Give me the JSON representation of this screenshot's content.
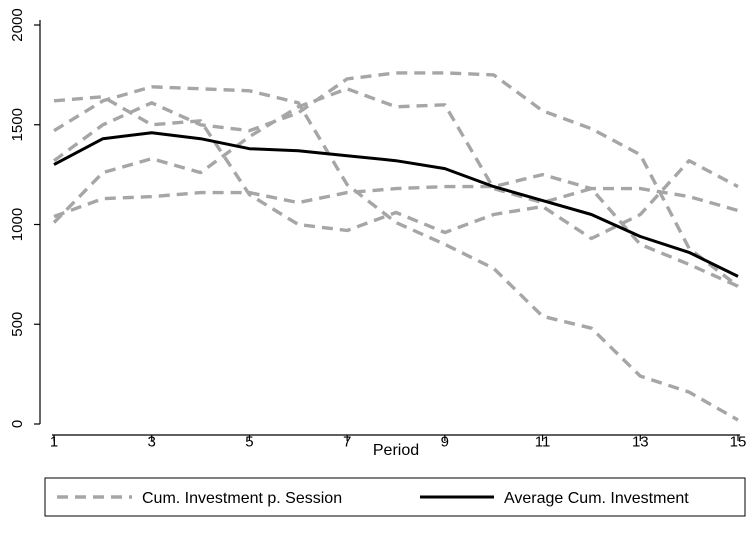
{
  "chart_data": {
    "type": "line",
    "xlabel": "Period",
    "ylabel": "",
    "xlim": [
      1,
      15
    ],
    "ylim": [
      0,
      2000
    ],
    "x_ticks": [
      1,
      3,
      5,
      7,
      9,
      11,
      13,
      15
    ],
    "y_ticks": [
      0,
      500,
      1000,
      1500,
      2000
    ],
    "grid": false,
    "legend_position": "bottom",
    "x": [
      1,
      2,
      3,
      4,
      5,
      6,
      7,
      8,
      9,
      10,
      11,
      12,
      13,
      14,
      15
    ],
    "series": [
      {
        "group": "session",
        "color": "#a6a6a6",
        "style": "dashed",
        "values": [
          1620,
          1640,
          1500,
          1520,
          1150,
          1000,
          970,
          1060,
          960,
          1050,
          1090,
          930,
          1050,
          1320,
          1190
        ]
      },
      {
        "group": "session",
        "color": "#a6a6a6",
        "style": "dashed",
        "values": [
          1470,
          1620,
          1690,
          1680,
          1670,
          1610,
          1200,
          1010,
          900,
          780,
          540,
          480,
          240,
          160,
          20
        ]
      },
      {
        "group": "session",
        "color": "#a6a6a6",
        "style": "dashed",
        "values": [
          1320,
          1500,
          1610,
          1500,
          1470,
          1560,
          1730,
          1760,
          1760,
          1750,
          1570,
          1480,
          1350,
          880,
          690
        ]
      },
      {
        "group": "session",
        "color": "#a6a6a6",
        "style": "dashed",
        "values": [
          1010,
          1260,
          1330,
          1260,
          1440,
          1590,
          1680,
          1590,
          1600,
          1180,
          1110,
          1180,
          900,
          800,
          690
        ]
      },
      {
        "group": "session",
        "color": "#a6a6a6",
        "style": "dashed",
        "values": [
          1040,
          1130,
          1140,
          1160,
          1160,
          1110,
          1160,
          1180,
          1190,
          1190,
          1250,
          1180,
          1180,
          1140,
          1070
        ]
      },
      {
        "group": "average",
        "color": "#000000",
        "style": "solid",
        "values": [
          1300,
          1430,
          1460,
          1430,
          1380,
          1370,
          1345,
          1320,
          1280,
          1190,
          1120,
          1050,
          940,
          860,
          740
        ]
      }
    ],
    "legend": [
      {
        "label": "Cum. Investment p. Session",
        "color": "#a6a6a6",
        "style": "dashed"
      },
      {
        "label": "Average Cum. Investment",
        "color": "#000000",
        "style": "solid"
      }
    ]
  }
}
